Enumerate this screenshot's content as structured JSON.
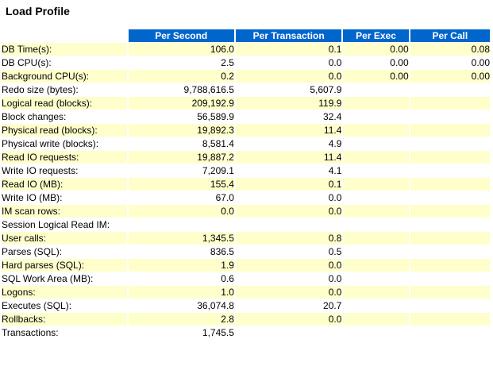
{
  "title": "Load Profile",
  "colors": {
    "header_bg": "#0066CC",
    "header_text": "#FFFFFF",
    "row_shaded": "#FFFFCC",
    "row_plain": "#FFFFFF"
  },
  "table": {
    "headers": [
      "Per Second",
      "Per Transaction",
      "Per Exec",
      "Per Call"
    ],
    "rows": [
      {
        "label": "DB Time(s):",
        "per_second": "106.0",
        "per_transaction": "0.1",
        "per_exec": "0.00",
        "per_call": "0.08",
        "shaded": true
      },
      {
        "label": "DB CPU(s):",
        "per_second": "2.5",
        "per_transaction": "0.0",
        "per_exec": "0.00",
        "per_call": "0.00",
        "shaded": false
      },
      {
        "label": "Background CPU(s):",
        "per_second": "0.2",
        "per_transaction": "0.0",
        "per_exec": "0.00",
        "per_call": "0.00",
        "shaded": true
      },
      {
        "label": "Redo size (bytes):",
        "per_second": "9,788,616.5",
        "per_transaction": "5,607.9",
        "per_exec": "",
        "per_call": "",
        "shaded": false
      },
      {
        "label": "Logical read (blocks):",
        "per_second": "209,192.9",
        "per_transaction": "119.9",
        "per_exec": "",
        "per_call": "",
        "shaded": true
      },
      {
        "label": "Block changes:",
        "per_second": "56,589.9",
        "per_transaction": "32.4",
        "per_exec": "",
        "per_call": "",
        "shaded": false
      },
      {
        "label": "Physical read (blocks):",
        "per_second": "19,892.3",
        "per_transaction": "11.4",
        "per_exec": "",
        "per_call": "",
        "shaded": true
      },
      {
        "label": "Physical write (blocks):",
        "per_second": "8,581.4",
        "per_transaction": "4.9",
        "per_exec": "",
        "per_call": "",
        "shaded": false
      },
      {
        "label": "Read IO requests:",
        "per_second": "19,887.2",
        "per_transaction": "11.4",
        "per_exec": "",
        "per_call": "",
        "shaded": true
      },
      {
        "label": "Write IO requests:",
        "per_second": "7,209.1",
        "per_transaction": "4.1",
        "per_exec": "",
        "per_call": "",
        "shaded": false
      },
      {
        "label": "Read IO (MB):",
        "per_second": "155.4",
        "per_transaction": "0.1",
        "per_exec": "",
        "per_call": "",
        "shaded": true
      },
      {
        "label": "Write IO (MB):",
        "per_second": "67.0",
        "per_transaction": "0.0",
        "per_exec": "",
        "per_call": "",
        "shaded": false
      },
      {
        "label": "IM scan rows:",
        "per_second": "0.0",
        "per_transaction": "0.0",
        "per_exec": "",
        "per_call": "",
        "shaded": true
      },
      {
        "label": "Session Logical Read IM:",
        "per_second": "",
        "per_transaction": "",
        "per_exec": "",
        "per_call": "",
        "shaded": false
      },
      {
        "label": "User calls:",
        "per_second": "1,345.5",
        "per_transaction": "0.8",
        "per_exec": "",
        "per_call": "",
        "shaded": true
      },
      {
        "label": "Parses (SQL):",
        "per_second": "836.5",
        "per_transaction": "0.5",
        "per_exec": "",
        "per_call": "",
        "shaded": false
      },
      {
        "label": "Hard parses (SQL):",
        "per_second": "1.9",
        "per_transaction": "0.0",
        "per_exec": "",
        "per_call": "",
        "shaded": true
      },
      {
        "label": "SQL Work Area (MB):",
        "per_second": "0.6",
        "per_transaction": "0.0",
        "per_exec": "",
        "per_call": "",
        "shaded": false
      },
      {
        "label": "Logons:",
        "per_second": "1.0",
        "per_transaction": "0.0",
        "per_exec": "",
        "per_call": "",
        "shaded": true
      },
      {
        "label": "Executes (SQL):",
        "per_second": "36,074.8",
        "per_transaction": "20.7",
        "per_exec": "",
        "per_call": "",
        "shaded": false
      },
      {
        "label": "Rollbacks:",
        "per_second": "2.8",
        "per_transaction": "0.0",
        "per_exec": "",
        "per_call": "",
        "shaded": true
      },
      {
        "label": "Transactions:",
        "per_second": "1,745.5",
        "per_transaction": "",
        "per_exec": "",
        "per_call": "",
        "shaded": false
      }
    ]
  }
}
